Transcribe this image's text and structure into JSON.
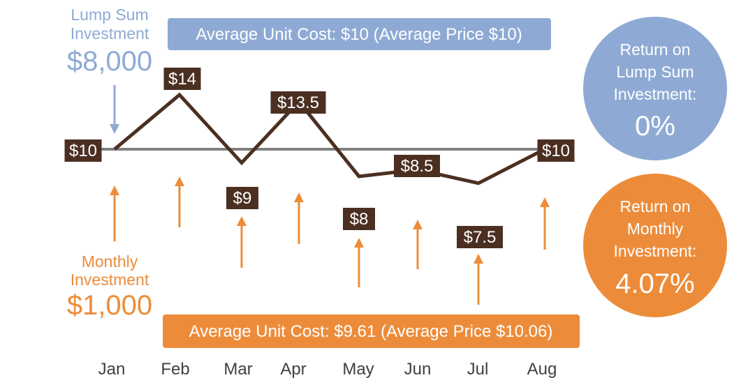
{
  "chart_data": {
    "type": "line",
    "categories": [
      "Jan",
      "Feb",
      "Mar",
      "Apr",
      "May",
      "Jun",
      "Jul",
      "Aug"
    ],
    "series": [
      {
        "values": [
          10,
          14,
          9,
          13.5,
          8,
          8.5,
          7.5,
          10
        ]
      }
    ],
    "price_labels": [
      "$10",
      "$14",
      "$9",
      "$13.5",
      "$8",
      "$8.5",
      "$7.5",
      "$10"
    ],
    "reference_line": {
      "value": 10
    },
    "lump_sum": {
      "line1": "Lump Sum",
      "line2": "Investment",
      "amount": "$8,000",
      "average_box": "Average Unit Cost: $10 (Average Price $10)",
      "return_line1": "Return on",
      "return_line2": "Lump Sum",
      "return_line3": "Investment:",
      "return_value": "0%"
    },
    "monthly": {
      "line1": "Monthly",
      "line2": "Investment",
      "amount": "$1,000",
      "average_box": "Average Unit Cost: $9.61 (Average Price $10.06)",
      "return_line1": "Return on",
      "return_line2": "Monthly",
      "return_line3": "Investment:",
      "return_value": "4.07%"
    },
    "colors": {
      "blue": "#8eaad4",
      "orange": "#ec8c3a",
      "line": "#4b3022",
      "reference": "#808080",
      "label_bg": "#4b3022"
    }
  }
}
